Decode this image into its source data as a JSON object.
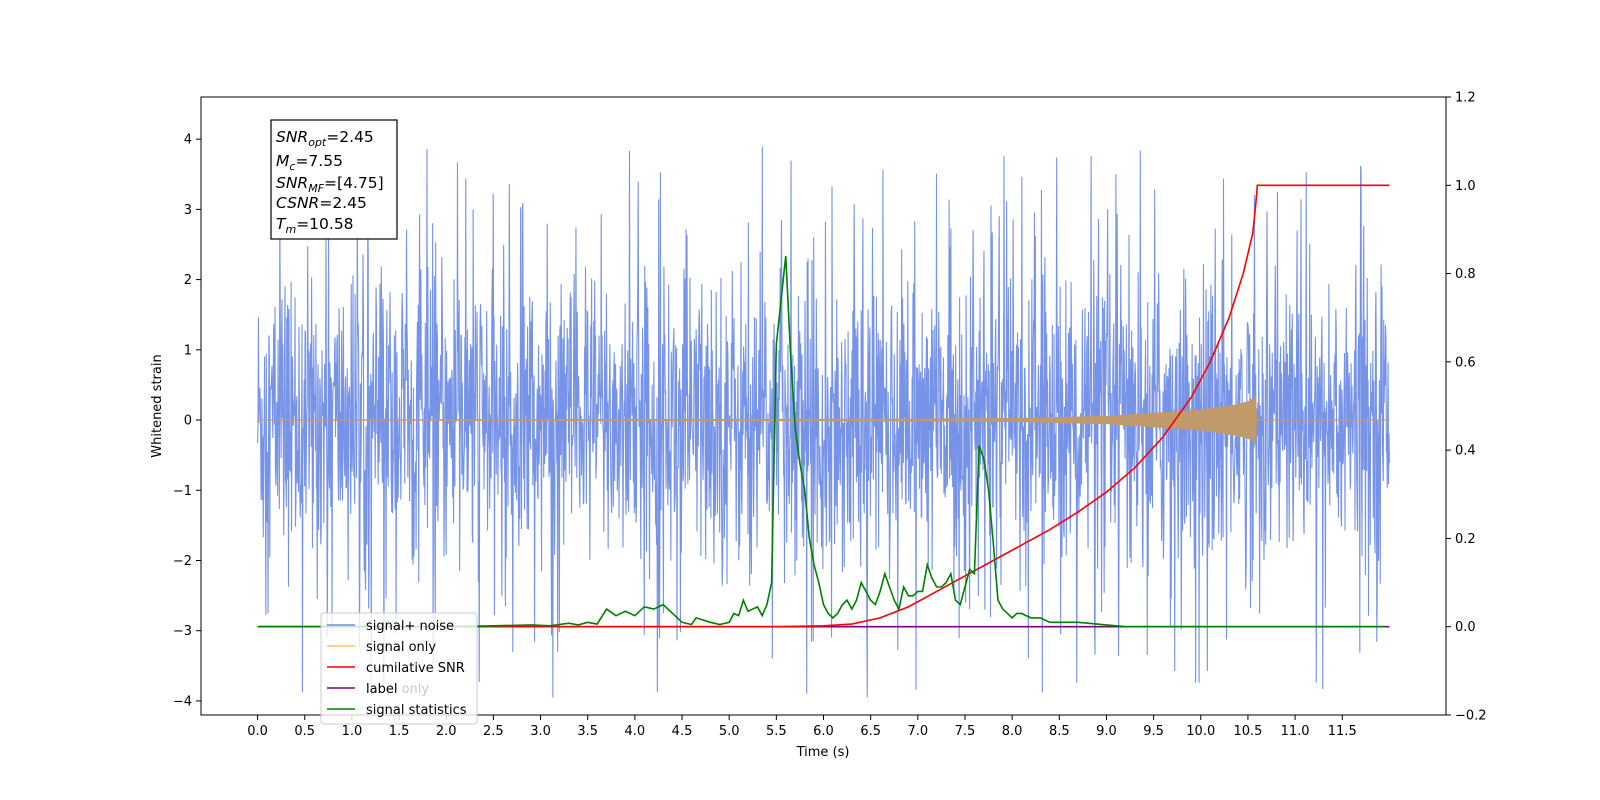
{
  "chart_data": {
    "type": "line",
    "xlabel": "Time (s)",
    "ylabel": "Whitened strain",
    "xlim": [
      -0.6,
      12.6
    ],
    "ylim": [
      -4.2,
      4.6
    ],
    "y2lim": [
      -0.2,
      1.2
    ],
    "x_ticks": [
      0.0,
      0.5,
      1.0,
      1.5,
      2.0,
      2.5,
      3.0,
      3.5,
      4.0,
      4.5,
      5.0,
      5.5,
      6.0,
      6.5,
      7.0,
      7.5,
      8.0,
      8.5,
      9.0,
      9.5,
      10.0,
      10.5,
      11.0,
      11.5
    ],
    "x_tick_labels": [
      "0.0",
      "0.5",
      "1.0",
      "1.5",
      "2.0",
      "2.5",
      "3.0",
      "3.5",
      "4.0",
      "4.5",
      "5.0",
      "5.5",
      "6.0",
      "6.5",
      "7.0",
      "7.5",
      "8.0",
      "8.5",
      "9.0",
      "9.5",
      "10.0",
      "10.5",
      "11.0",
      "11.5"
    ],
    "y_ticks": [
      -4,
      -3,
      -2,
      -1,
      0,
      1,
      2,
      3,
      4
    ],
    "y_tick_labels": [
      "−4",
      "−3",
      "−2",
      "−1",
      "0",
      "1",
      "2",
      "3",
      "4"
    ],
    "y2_ticks": [
      -0.2,
      0.0,
      0.2,
      0.4,
      0.6,
      0.8,
      1.0,
      1.2
    ],
    "y2_tick_labels": [
      "−0.2",
      "0.0",
      "0.2",
      "0.4",
      "0.6",
      "0.8",
      "1.0",
      "1.2"
    ],
    "grid": false,
    "legend_position": "bottom-left",
    "series": [
      {
        "name": "signal+ noise",
        "axis": "left",
        "color": "#6f8de6",
        "noise_band": {
          "x_start": 0.0,
          "x_end": 12.0,
          "typical_min": -2.6,
          "typical_max": 2.6,
          "extreme_min": -3.95,
          "extreme_max": 4.1
        }
      },
      {
        "name": "signal only",
        "axis": "left",
        "color": "#ffbf69",
        "envelope": [
          [
            0.0,
            0.0
          ],
          [
            7.0,
            0.01
          ],
          [
            8.0,
            0.02
          ],
          [
            9.0,
            0.05
          ],
          [
            10.0,
            0.14
          ],
          [
            10.4,
            0.22
          ],
          [
            10.55,
            0.28
          ],
          [
            10.58,
            0.35
          ],
          [
            10.59,
            0.0
          ],
          [
            12.0,
            0.0
          ]
        ]
      },
      {
        "name": "cumilative SNR",
        "axis": "right",
        "color": "#ff0000",
        "x": [
          0.0,
          5.5,
          6.0,
          6.3,
          6.6,
          6.9,
          7.2,
          7.5,
          7.8,
          8.1,
          8.4,
          8.7,
          9.0,
          9.3,
          9.6,
          9.9,
          10.1,
          10.3,
          10.45,
          10.55,
          10.58,
          10.6,
          12.0
        ],
        "y": [
          0.0,
          0.0,
          0.002,
          0.006,
          0.02,
          0.045,
          0.08,
          0.115,
          0.15,
          0.185,
          0.22,
          0.26,
          0.305,
          0.36,
          0.43,
          0.52,
          0.6,
          0.7,
          0.8,
          0.89,
          0.95,
          1.0,
          1.0
        ]
      },
      {
        "name": "label",
        "axis": "right",
        "color": "#800080",
        "x": [
          0.0,
          12.0
        ],
        "y": [
          0.0,
          0.0
        ]
      },
      {
        "name": "signal statistics",
        "axis": "right",
        "color": "#008000",
        "x": [
          0.0,
          1.0,
          2.0,
          2.5,
          2.9,
          3.1,
          3.3,
          3.4,
          3.5,
          3.6,
          3.7,
          3.8,
          3.9,
          4.0,
          4.1,
          4.2,
          4.3,
          4.4,
          4.5,
          4.6,
          4.65,
          4.8,
          4.9,
          5.0,
          5.05,
          5.1,
          5.15,
          5.2,
          5.25,
          5.3,
          5.35,
          5.4,
          5.45,
          5.5,
          5.55,
          5.6,
          5.65,
          5.7,
          5.75,
          5.8,
          5.85,
          5.9,
          5.95,
          6.0,
          6.05,
          6.1,
          6.15,
          6.2,
          6.25,
          6.3,
          6.35,
          6.4,
          6.45,
          6.5,
          6.55,
          6.6,
          6.65,
          6.7,
          6.75,
          6.8,
          6.85,
          6.9,
          6.95,
          7.0,
          7.05,
          7.1,
          7.15,
          7.2,
          7.25,
          7.3,
          7.35,
          7.4,
          7.45,
          7.5,
          7.55,
          7.6,
          7.65,
          7.7,
          7.75,
          7.8,
          7.85,
          7.9,
          7.95,
          8.0,
          8.05,
          8.1,
          8.2,
          8.3,
          8.4,
          8.5,
          8.6,
          8.7,
          8.8,
          8.9,
          9.0,
          9.1,
          9.2,
          9.4,
          9.6,
          10.0,
          11.0,
          11.95
        ],
        "y": [
          0.0,
          0.0,
          0.0,
          0.002,
          0.004,
          0.002,
          0.008,
          0.004,
          0.01,
          0.006,
          0.04,
          0.025,
          0.035,
          0.025,
          0.045,
          0.04,
          0.05,
          0.03,
          0.01,
          0.005,
          0.02,
          0.01,
          0.005,
          0.01,
          0.03,
          0.025,
          0.06,
          0.035,
          0.04,
          0.045,
          0.025,
          0.05,
          0.1,
          0.64,
          0.74,
          0.84,
          0.62,
          0.45,
          0.37,
          0.31,
          0.2,
          0.14,
          0.1,
          0.05,
          0.03,
          0.02,
          0.03,
          0.05,
          0.06,
          0.04,
          0.06,
          0.1,
          0.08,
          0.06,
          0.05,
          0.08,
          0.12,
          0.09,
          0.06,
          0.04,
          0.09,
          0.07,
          0.07,
          0.08,
          0.08,
          0.14,
          0.11,
          0.09,
          0.09,
          0.1,
          0.12,
          0.06,
          0.05,
          0.09,
          0.13,
          0.12,
          0.41,
          0.38,
          0.31,
          0.19,
          0.06,
          0.04,
          0.03,
          0.02,
          0.03,
          0.03,
          0.02,
          0.02,
          0.01,
          0.01,
          0.01,
          0.01,
          0.008,
          0.006,
          0.004,
          0.002,
          0.0,
          0.0,
          0.0,
          0.0,
          0.0,
          0.0
        ]
      }
    ],
    "annotation_lines": [
      {
        "label": "SNR",
        "subscript": "opt",
        "value": "=2.45"
      },
      {
        "label": "M",
        "subscript": "c",
        "value": "=7.55"
      },
      {
        "label": "SNR",
        "subscript": "MF",
        "value": "=[4.75]"
      },
      {
        "label": "CSNR",
        "subscript": "",
        "value": "=2.45"
      },
      {
        "label": "T",
        "subscript": "m",
        "value": "=10.58"
      }
    ],
    "legend_overlay_text": "label only"
  }
}
